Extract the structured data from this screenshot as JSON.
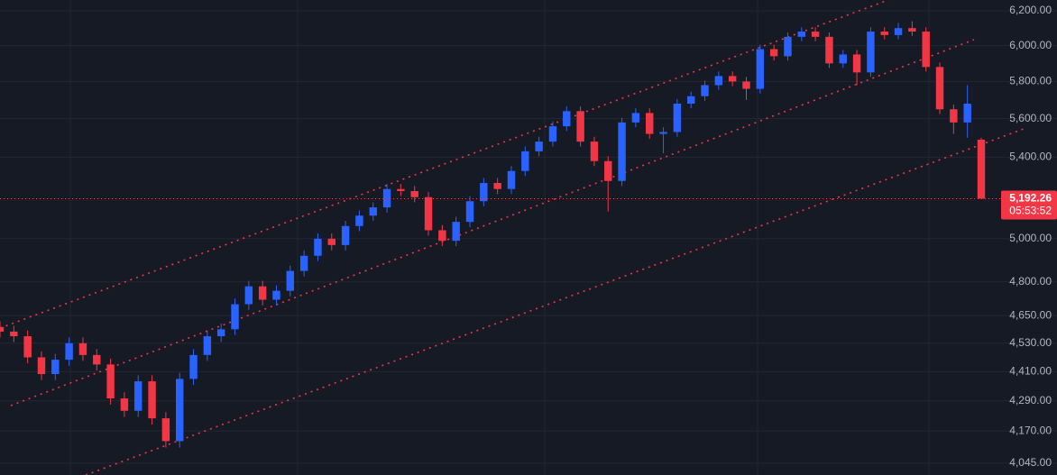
{
  "chart_data": {
    "type": "candlestick",
    "log_scale": true,
    "grid": true,
    "up_color": "#2962ff",
    "down_color": "#f23645",
    "ylim": [
      4000,
      6264
    ],
    "yticks": [
      {
        "value": 6200,
        "label": "6,200.00"
      },
      {
        "value": 6000,
        "label": "6,000.00"
      },
      {
        "value": 5800,
        "label": "5,800.00"
      },
      {
        "value": 5600,
        "label": "5,600.00"
      },
      {
        "value": 5400,
        "label": "5,400.00"
      },
      {
        "value": 5000,
        "label": "5,000.00"
      },
      {
        "value": 4800,
        "label": "4,800.00"
      },
      {
        "value": 4650,
        "label": "4,650.00"
      },
      {
        "value": 4530,
        "label": "4,530.00"
      },
      {
        "value": 4410,
        "label": "4,410.00"
      },
      {
        "value": 4290,
        "label": "4,290.00"
      },
      {
        "value": 4170,
        "label": "4,170.00"
      },
      {
        "value": 4045,
        "label": "4,045.00"
      }
    ],
    "last_price": {
      "value": 5192.26,
      "label": "5,192.26"
    },
    "countdown": "05:53:52",
    "open": [
      4600,
      4580,
      4560,
      4470,
      4400,
      4460,
      4530,
      4480,
      4440,
      4300,
      4250,
      4370,
      4220,
      4130,
      4380,
      4480,
      4560,
      4590,
      4700,
      4780,
      4720,
      4760,
      4850,
      4920,
      5000,
      4970,
      5060,
      5110,
      5150,
      5240,
      5230,
      5200,
      5040,
      4990,
      5080,
      5180,
      5270,
      5240,
      5330,
      5430,
      5480,
      5560,
      5640,
      5480,
      5380,
      5280,
      5580,
      5630,
      5520,
      5530,
      5680,
      5720,
      5780,
      5830,
      5800,
      5760,
      5980,
      5940,
      6050,
      6080,
      6050,
      5900,
      5950,
      5850,
      6080,
      6060,
      6100,
      6080,
      5880,
      5650,
      5580,
      5490
    ],
    "high": [
      4625,
      4605,
      4585,
      4495,
      4485,
      4555,
      4555,
      4505,
      4465,
      4325,
      4395,
      4395,
      4245,
      4405,
      4505,
      4585,
      4615,
      4725,
      4805,
      4805,
      4785,
      4875,
      4945,
      5025,
      5025,
      5085,
      5135,
      5175,
      5265,
      5265,
      5255,
      5225,
      5065,
      5105,
      5205,
      5295,
      5295,
      5355,
      5455,
      5505,
      5585,
      5665,
      5665,
      5505,
      5405,
      5605,
      5655,
      5655,
      5555,
      5705,
      5745,
      5805,
      5855,
      5855,
      5825,
      6005,
      6005,
      6075,
      6105,
      6105,
      6075,
      5975,
      5975,
      6105,
      6105,
      6130,
      6140,
      6105,
      5905,
      5675,
      5780,
      5500
    ],
    "low": [
      4555,
      4535,
      4445,
      4375,
      4375,
      4435,
      4455,
      4415,
      4275,
      4225,
      4225,
      4195,
      4105,
      4105,
      4355,
      4455,
      4535,
      4565,
      4675,
      4695,
      4695,
      4735,
      4825,
      4895,
      4945,
      4945,
      5035,
      5085,
      5125,
      5205,
      5175,
      5015,
      4965,
      4965,
      5055,
      5155,
      5215,
      5215,
      5305,
      5405,
      5455,
      5535,
      5455,
      5355,
      5130,
      5255,
      5555,
      5495,
      5420,
      5505,
      5655,
      5695,
      5755,
      5775,
      5700,
      5735,
      5915,
      5915,
      6025,
      6025,
      5875,
      5875,
      5780,
      5825,
      6035,
      6035,
      6055,
      5855,
      5625,
      5520,
      5500,
      5192.26
    ],
    "close": [
      4580,
      4560,
      4470,
      4400,
      4460,
      4530,
      4480,
      4440,
      4300,
      4250,
      4370,
      4220,
      4130,
      4380,
      4480,
      4560,
      4590,
      4700,
      4780,
      4720,
      4760,
      4850,
      4920,
      5000,
      4970,
      5060,
      5110,
      5150,
      5240,
      5230,
      5200,
      5040,
      4990,
      5080,
      5180,
      5270,
      5240,
      5330,
      5430,
      5480,
      5560,
      5640,
      5480,
      5380,
      5280,
      5580,
      5630,
      5520,
      5530,
      5680,
      5720,
      5780,
      5830,
      5800,
      5760,
      5980,
      5940,
      6050,
      6080,
      6050,
      5900,
      5950,
      5850,
      6080,
      6060,
      6100,
      6080,
      5880,
      5650,
      5580,
      5680,
      5192.26
    ]
  }
}
